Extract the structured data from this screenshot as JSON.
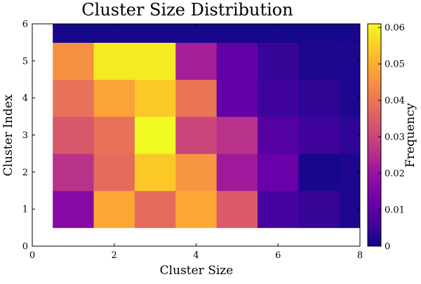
{
  "chart_data": {
    "type": "heatmap",
    "title": "Cluster Size Distribution",
    "xlabel": "Cluster Size",
    "ylabel": "Cluster Index",
    "colorbar_label": "Frequency",
    "xlim": [
      0,
      8
    ],
    "ylim": [
      0,
      6
    ],
    "x_ticks": [
      0,
      2,
      4,
      6,
      8
    ],
    "y_ticks": [
      0,
      1,
      2,
      3,
      4,
      5,
      6
    ],
    "colorbar_range": [
      0,
      0.061
    ],
    "colorbar_ticks": [
      "0",
      "0.01",
      "0.02",
      "0.03",
      "0.04",
      "0.05",
      "0.06"
    ],
    "colormap": "plasma",
    "grid": false,
    "x_centers": [
      1,
      2,
      3,
      4,
      5,
      6,
      7,
      8
    ],
    "y_centers": [
      1,
      2,
      3,
      4,
      5,
      6
    ],
    "values": [
      [
        0.017,
        0.049,
        0.038,
        0.049,
        0.035,
        0.007,
        0.005,
        0.002
      ],
      [
        0.026,
        0.038,
        0.054,
        0.046,
        0.021,
        0.012,
        0.001,
        0.002
      ],
      [
        0.034,
        0.039,
        0.061,
        0.03,
        0.026,
        0.009,
        0.006,
        0.004
      ],
      [
        0.039,
        0.048,
        0.054,
        0.04,
        0.011,
        0.006,
        0.004,
        0.002
      ],
      [
        0.045,
        0.059,
        0.059,
        0.022,
        0.011,
        0.005,
        0.002,
        0.002
      ],
      [
        0.001,
        0.001,
        0.001,
        0.001,
        0.001,
        0.001,
        0.001,
        0.001
      ]
    ]
  }
}
